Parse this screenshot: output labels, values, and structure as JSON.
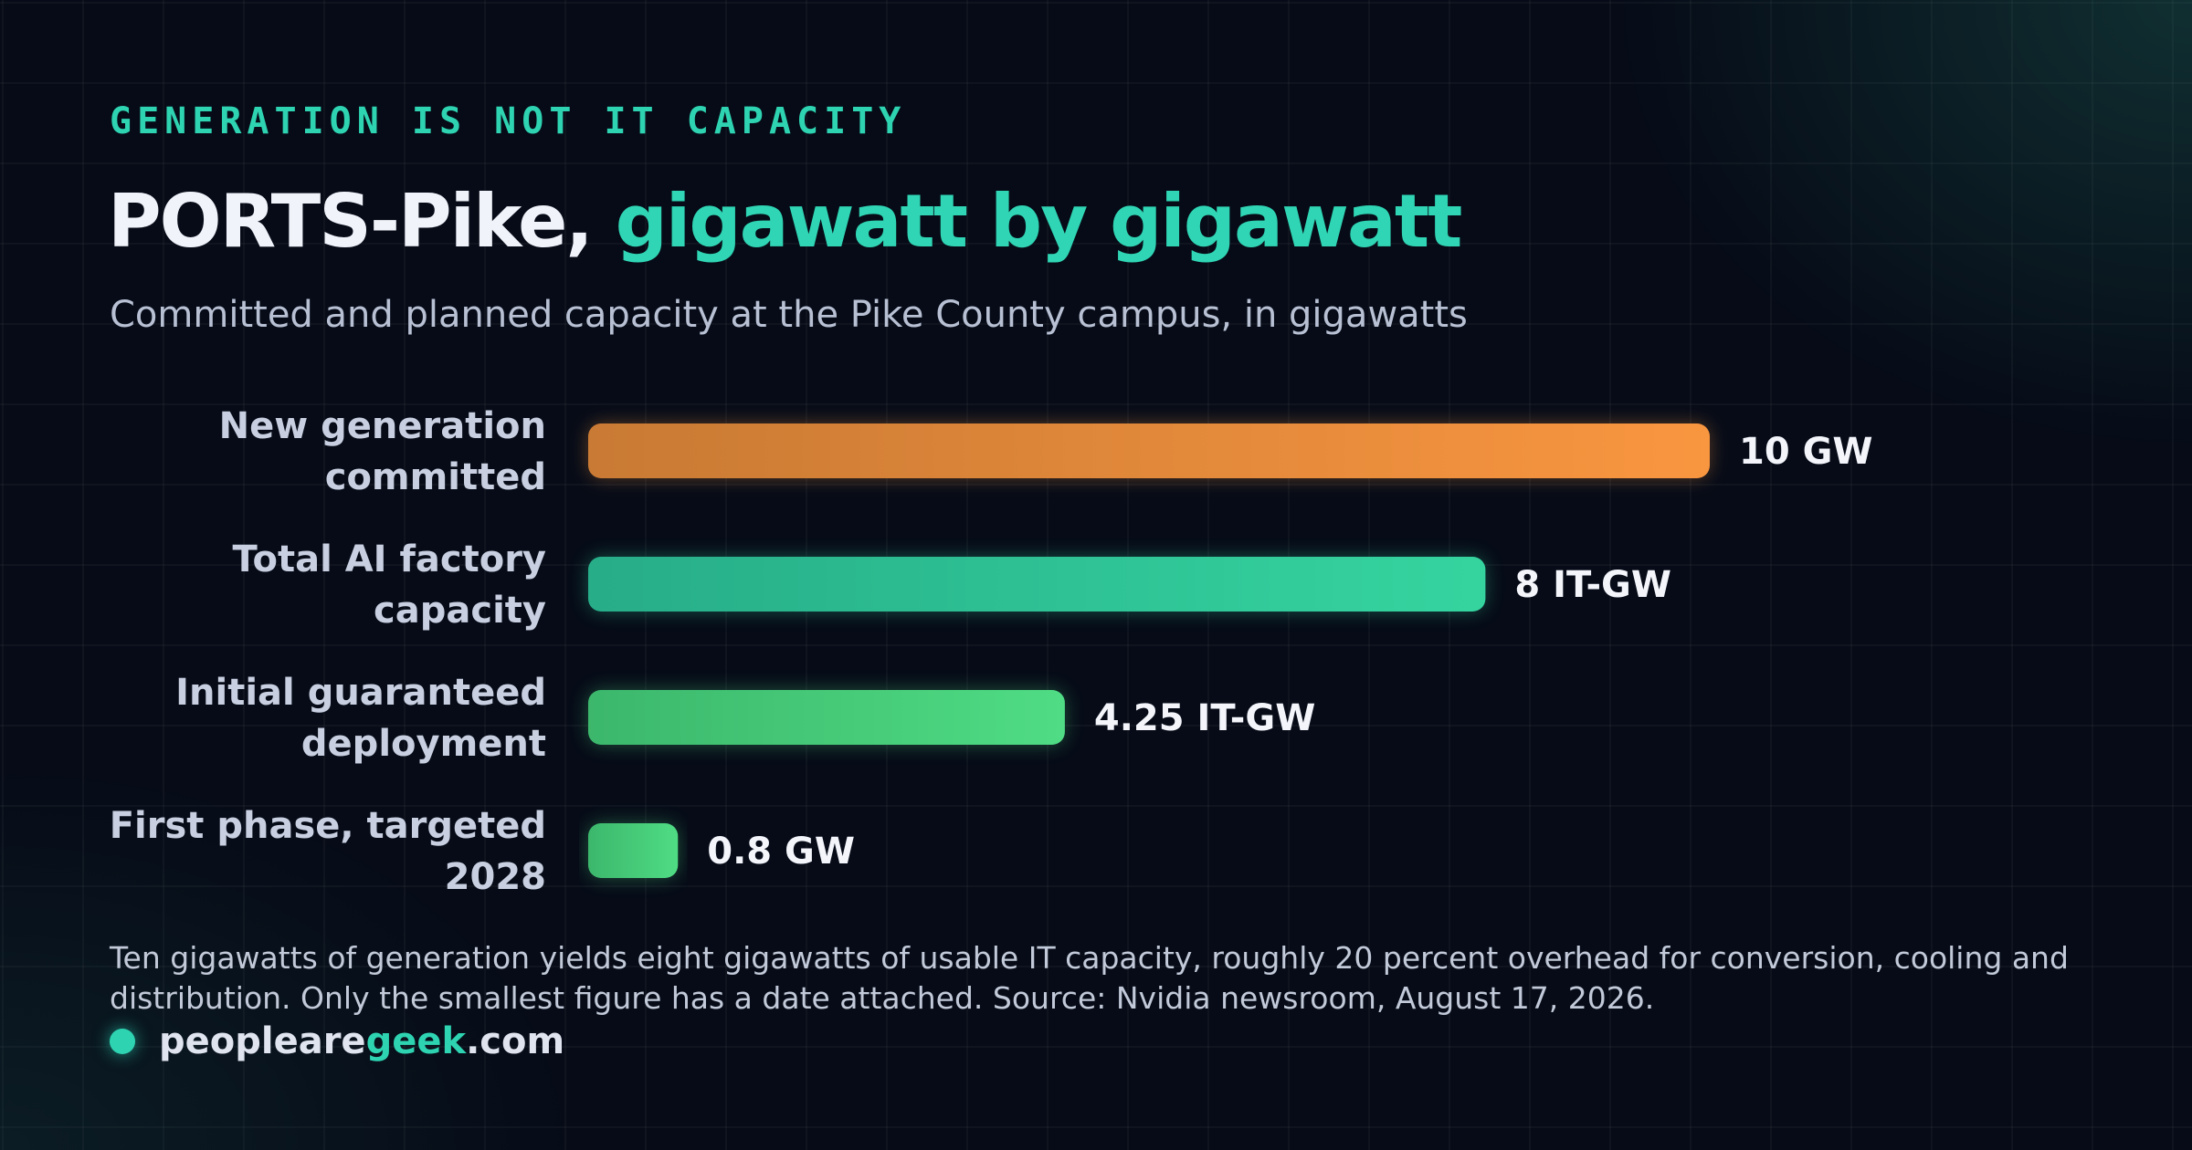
{
  "header": {
    "kicker": "GENERATION IS NOT IT CAPACITY",
    "title_part1": "PORTS-Pike, ",
    "title_part2": "gigawatt by gigawatt",
    "subtitle": "Committed and planned capacity at the Pike County campus, in gigawatts"
  },
  "chart_data": {
    "type": "bar",
    "orientation": "horizontal",
    "title": "PORTS-Pike, gigawatt by gigawatt",
    "subtitle": "Committed and planned capacity at the Pike County campus, in gigawatts",
    "xlabel": "",
    "ylabel": "",
    "grid": false,
    "xlim": [
      0,
      10
    ],
    "categories": [
      [
        "New generation",
        "committed"
      ],
      [
        "Total AI factory",
        "capacity"
      ],
      [
        "Initial guaranteed",
        "deployment"
      ],
      [
        "First phase, targeted",
        "2028"
      ]
    ],
    "values": [
      10,
      8,
      4.25,
      0.8
    ],
    "value_labels": [
      "10 GW",
      "8 IT-GW",
      "4.25 IT-GW",
      "0.8 GW"
    ],
    "colors": [
      [
        "#c97a34",
        "#f99640"
      ],
      [
        "#27ad88",
        "#35d49f"
      ],
      [
        "#3cb76c",
        "#4fdc84"
      ],
      [
        "#3cb76c",
        "#4fdc84"
      ]
    ]
  },
  "footer": {
    "note": "Ten gigawatts of generation yields eight gigawatts of usable IT capacity, roughly 20 percent overhead for conversion, cooling and distribution. Only the smallest figure has a date attached. Source: Nvidia newsroom, August 17, 2026.",
    "brand_part1": "peopleare",
    "brand_part2": "geek",
    "brand_part3": ".com"
  }
}
